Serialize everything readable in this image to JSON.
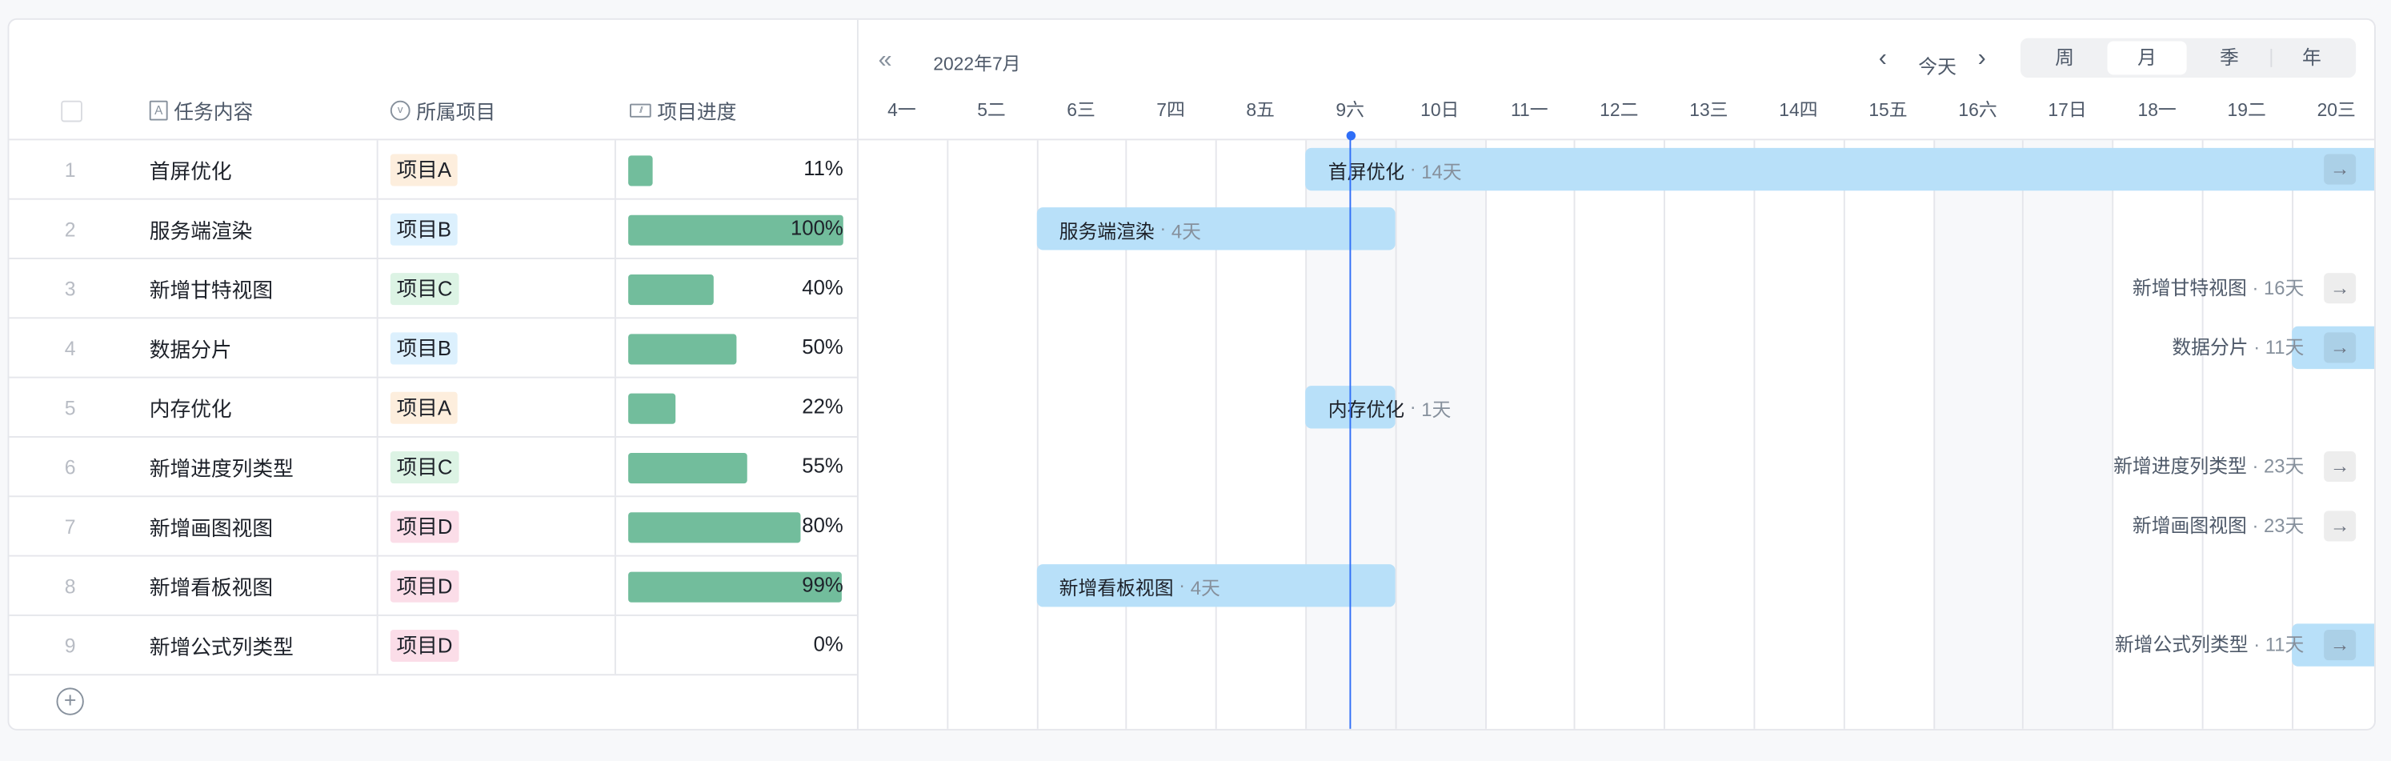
{
  "table": {
    "headers": {
      "task": "任务内容",
      "project": "所属项目",
      "progress": "项目进度"
    },
    "header_icons": {
      "task": "text-field-icon",
      "project": "single-select-icon",
      "progress": "progress-icon"
    },
    "rows": [
      {
        "index": "1",
        "task": "首屏优化",
        "project": "项目A",
        "progress": 11,
        "progress_label": "11%"
      },
      {
        "index": "2",
        "task": "服务端渲染",
        "project": "项目B",
        "progress": 100,
        "progress_label": "100%"
      },
      {
        "index": "3",
        "task": "新增甘特视图",
        "project": "项目C",
        "progress": 40,
        "progress_label": "40%"
      },
      {
        "index": "4",
        "task": "数据分片",
        "project": "项目B",
        "progress": 50,
        "progress_label": "50%"
      },
      {
        "index": "5",
        "task": "内存优化",
        "project": "项目A",
        "progress": 22,
        "progress_label": "22%"
      },
      {
        "index": "6",
        "task": "新增进度列类型",
        "project": "项目C",
        "progress": 55,
        "progress_label": "55%"
      },
      {
        "index": "7",
        "task": "新增画图视图",
        "project": "项目D",
        "progress": 80,
        "progress_label": "80%"
      },
      {
        "index": "8",
        "task": "新增看板视图",
        "project": "项目D",
        "progress": 99,
        "progress_label": "99%"
      },
      {
        "index": "9",
        "task": "新增公式列类型",
        "project": "项目D",
        "progress": 0,
        "progress_label": "0%"
      }
    ],
    "project_colors": {
      "项目A": "#fdeedd",
      "项目B": "#dcf0fd",
      "项目C": "#dcf3e4",
      "项目D": "#fbdde8"
    },
    "progress_color": "#72bd9c",
    "add_row_icon": "plus-circle-icon"
  },
  "gantt": {
    "month": "2022年7月",
    "today_label": "今天",
    "scales": [
      {
        "label": "周",
        "active": false
      },
      {
        "label": "月",
        "active": true
      },
      {
        "label": "季",
        "active": false
      },
      {
        "label": "年",
        "active": false
      }
    ],
    "days": [
      {
        "label": "4一",
        "weekend": false
      },
      {
        "label": "5二",
        "weekend": false
      },
      {
        "label": "6三",
        "weekend": false
      },
      {
        "label": "7四",
        "weekend": false
      },
      {
        "label": "8五",
        "weekend": false
      },
      {
        "label": "9六",
        "weekend": true
      },
      {
        "label": "10日",
        "weekend": true
      },
      {
        "label": "11一",
        "weekend": false
      },
      {
        "label": "12二",
        "weekend": false
      },
      {
        "label": "13三",
        "weekend": false
      },
      {
        "label": "14四",
        "weekend": false
      },
      {
        "label": "15五",
        "weekend": false
      },
      {
        "label": "16六",
        "weekend": true
      },
      {
        "label": "17日",
        "weekend": true
      },
      {
        "label": "18一",
        "weekend": false
      },
      {
        "label": "19二",
        "weekend": false
      },
      {
        "label": "20三",
        "weekend": false
      }
    ],
    "first_day": 4,
    "today": 9,
    "bar_color": "#b8e0f9",
    "today_color": "#2f6ef7",
    "bars": [
      {
        "name": "首屏优化",
        "duration": "14天",
        "start": 9,
        "days": 14
      },
      {
        "name": "服务端渲染",
        "duration": "4天",
        "start": 6,
        "days": 4
      },
      {
        "name": "新增甘特视图",
        "duration": "16天",
        "start": null,
        "days": 16
      },
      {
        "name": "数据分片",
        "duration": "11天",
        "start": 20,
        "days": 11
      },
      {
        "name": "内存优化",
        "duration": "1天",
        "start": 9,
        "days": 1
      },
      {
        "name": "新增进度列类型",
        "duration": "23天",
        "start": null,
        "days": 23
      },
      {
        "name": "新增画图视图",
        "duration": "23天",
        "start": null,
        "days": 23
      },
      {
        "name": "新增看板视图",
        "duration": "4天",
        "start": 6,
        "days": 4
      },
      {
        "name": "新增公式列类型",
        "duration": "11天",
        "start": 20,
        "days": 11
      }
    ]
  }
}
